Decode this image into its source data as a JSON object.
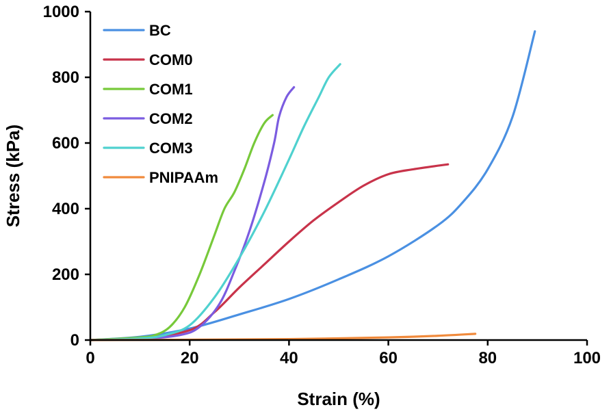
{
  "chart_data": {
    "type": "line",
    "title": "",
    "xlabel": "Strain (%)",
    "ylabel": "Stress (kPa)",
    "xlim": [
      0,
      100
    ],
    "ylim": [
      0,
      1000
    ],
    "xticks": [
      "0",
      "20",
      "40",
      "60",
      "80",
      "100"
    ],
    "yticks": [
      "0",
      "200",
      "400",
      "600",
      "800",
      "1000"
    ],
    "grid": false,
    "legend_position": "top-left",
    "series": [
      {
        "name": "BC",
        "color": "#4a90e2",
        "points": [
          [
            0,
            0
          ],
          [
            10,
            10
          ],
          [
            20,
            35
          ],
          [
            30,
            78
          ],
          [
            40,
            125
          ],
          [
            50,
            185
          ],
          [
            60,
            255
          ],
          [
            70,
            350
          ],
          [
            75,
            420
          ],
          [
            80,
            520
          ],
          [
            85,
            680
          ],
          [
            89.5,
            940
          ]
        ]
      },
      {
        "name": "COM0",
        "color": "#c8334a",
        "points": [
          [
            0,
            0
          ],
          [
            10,
            5
          ],
          [
            20,
            30
          ],
          [
            25,
            85
          ],
          [
            30,
            160
          ],
          [
            35,
            230
          ],
          [
            40,
            300
          ],
          [
            45,
            365
          ],
          [
            50,
            420
          ],
          [
            55,
            470
          ],
          [
            60,
            505
          ],
          [
            65,
            520
          ],
          [
            72,
            535
          ]
        ]
      },
      {
        "name": "COM1",
        "color": "#77c93a",
        "points": [
          [
            0,
            0
          ],
          [
            10,
            8
          ],
          [
            13,
            15
          ],
          [
            16,
            40
          ],
          [
            19,
            100
          ],
          [
            22,
            200
          ],
          [
            25,
            320
          ],
          [
            27,
            400
          ],
          [
            29,
            450
          ],
          [
            31,
            520
          ],
          [
            33,
            600
          ],
          [
            35,
            660
          ],
          [
            36.7,
            685
          ]
        ]
      },
      {
        "name": "COM2",
        "color": "#7b5ce0",
        "points": [
          [
            0,
            0
          ],
          [
            10,
            3
          ],
          [
            18,
            15
          ],
          [
            22,
            40
          ],
          [
            26,
            110
          ],
          [
            29,
            210
          ],
          [
            32,
            330
          ],
          [
            35,
            480
          ],
          [
            37,
            600
          ],
          [
            38,
            680
          ],
          [
            39.5,
            740
          ],
          [
            41,
            770
          ]
        ]
      },
      {
        "name": "COM3",
        "color": "#4fd1cf",
        "points": [
          [
            0,
            0
          ],
          [
            10,
            5
          ],
          [
            15,
            15
          ],
          [
            20,
            45
          ],
          [
            25,
            130
          ],
          [
            30,
            250
          ],
          [
            35,
            390
          ],
          [
            40,
            550
          ],
          [
            43,
            650
          ],
          [
            46,
            740
          ],
          [
            48,
            800
          ],
          [
            50.3,
            840
          ]
        ]
      },
      {
        "name": "PNIPAAm",
        "color": "#f08a3c",
        "points": [
          [
            0,
            0
          ],
          [
            20,
            1
          ],
          [
            40,
            3
          ],
          [
            60,
            8
          ],
          [
            70,
            13
          ],
          [
            77.5,
            19
          ]
        ]
      }
    ]
  }
}
